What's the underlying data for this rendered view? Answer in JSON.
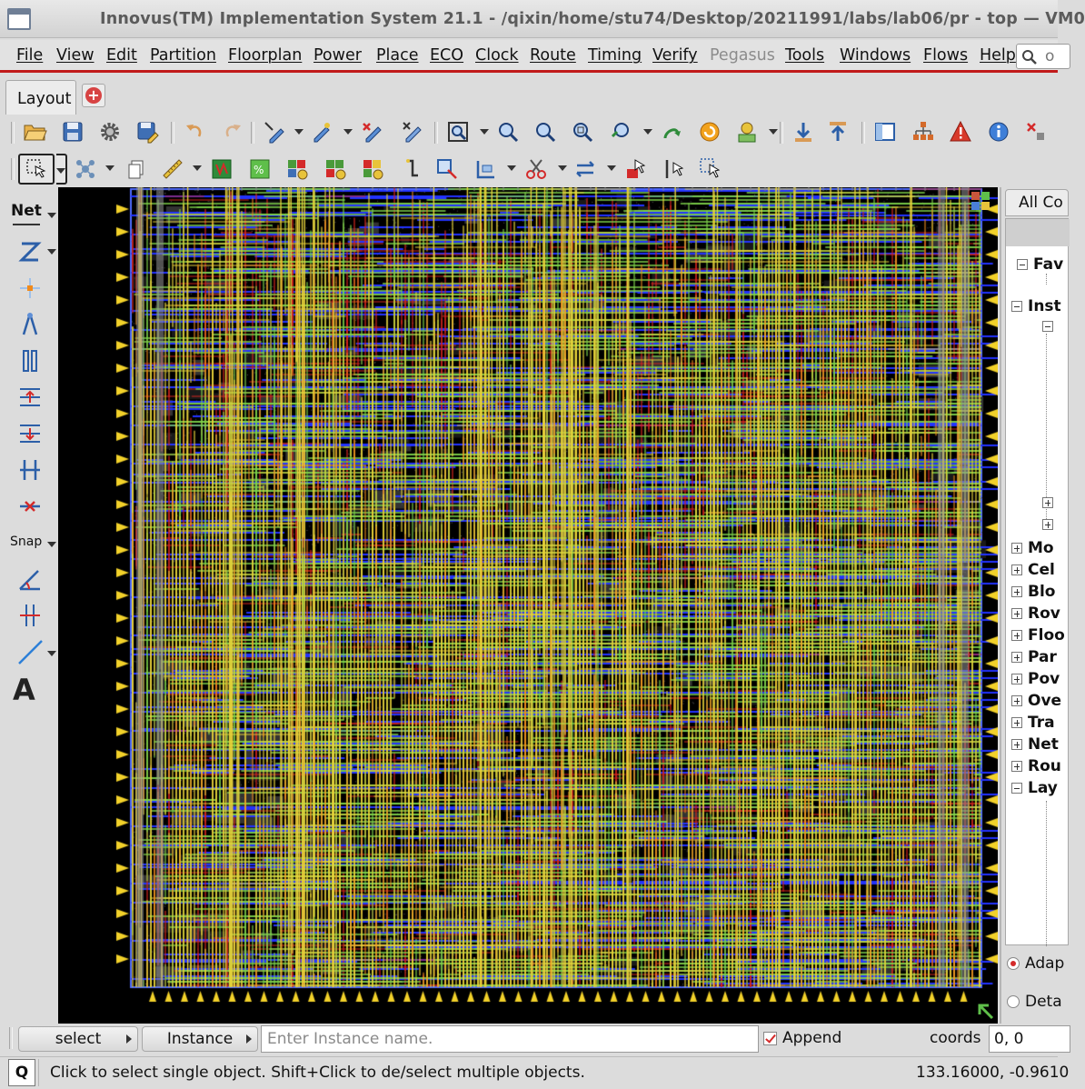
{
  "window": {
    "title": "Innovus(TM) Implementation System 21.1 - /qixin/home/stu74/Desktop/20211991/labs/lab06/pr - top — VM0"
  },
  "menubar": {
    "items": [
      "File",
      "View",
      "Edit",
      "Partition",
      "Floorplan",
      "Power",
      "Place",
      "ECO",
      "Clock",
      "Route",
      "Timing",
      "Verify",
      "Pegasus",
      "Tools",
      "Windows",
      "Flows",
      "Help"
    ],
    "disabled": [
      "Pegasus"
    ],
    "search_placeholder": "o"
  },
  "tabs": {
    "active": "Layout"
  },
  "toolbar1": {
    "icons": [
      "open-folder-icon",
      "save-icon",
      "gear-icon",
      "save-as-icon",
      "undo-icon",
      "redo-icon",
      "select-pen-icon",
      "edit-pen-icon",
      "delete-pen-icon",
      "clear-highlight-icon",
      "zoom-fit-icon",
      "zoom-in-icon",
      "zoom-out-icon",
      "zoom-select-icon",
      "zoom-previous-icon",
      "pan-icon",
      "refresh-icon",
      "snapshot-icon",
      "move-down-icon",
      "move-up-icon",
      "layout-panel-icon",
      "hierarchy-icon",
      "violation-icon",
      "info-icon",
      "flight-line-icon"
    ]
  },
  "toolbar2": {
    "icons": [
      "select-tool-icon",
      "cluster-icon",
      "copy-icon",
      "ruler-icon",
      "density-map-icon",
      "placement-map-icon",
      "add-instance-icon",
      "add-group-icon",
      "add-module-icon",
      "pin-icon",
      "stretch-icon",
      "cut-icon",
      "resize-icon",
      "move-icon",
      "net-edit-icon",
      "select-path-icon"
    ]
  },
  "leftbar": {
    "net_label": "Net",
    "snap_label": "Snap",
    "text_tool": "A"
  },
  "rightpanel": {
    "tab_label": "All Co",
    "favorites": "Fav",
    "instances": "Inst",
    "items": [
      "Mo",
      "Cel",
      "Blo",
      "Rov",
      "Floo",
      "Par",
      "Pov",
      "Ove",
      "Tra",
      "Net",
      "Rou",
      "Lay"
    ],
    "radio_adaptive": "Adap",
    "radio_detail": "Deta"
  },
  "bottombar": {
    "select_label": "select",
    "instance_label": "Instance",
    "instance_placeholder": "Enter Instance name.",
    "append_label": "Append",
    "coords_label": "coords",
    "coords_value": "0, 0"
  },
  "statusbar": {
    "q_label": "Q",
    "message": "Click to select single object. Shift+Click to de/select multiple objects.",
    "cursor_coords": "133.16000, -0.9610"
  },
  "layout_colors": {
    "background": "#000000",
    "metal_horizontal": "#2233ff",
    "metal_vertical_yellow": "#e8d23a",
    "metal_green": "#7ed24a",
    "metal_red": "#d8261e",
    "metal_orange": "#f08a1c",
    "pin": "#f2d12a",
    "cell_fill": "#2a2a2a"
  }
}
